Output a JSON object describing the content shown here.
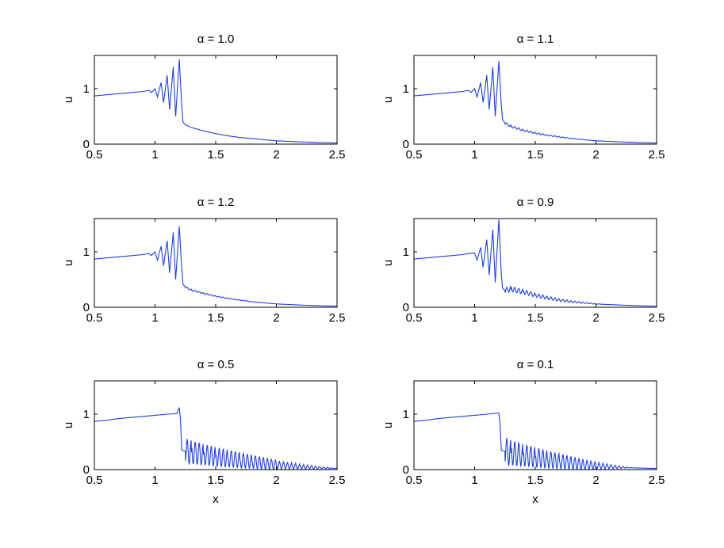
{
  "chart_data": [
    {
      "type": "line",
      "title": "α = 1.0",
      "xlabel": "",
      "ylabel": "u",
      "xlim": [
        0.5,
        2.5
      ],
      "ylim": [
        0,
        1.6
      ],
      "xticks": [
        "0.5",
        "1",
        "1.5",
        "2",
        "2.5"
      ],
      "yticks": [
        "0",
        "1"
      ],
      "grid": false,
      "series": [
        {
          "color": "#1f3fe0",
          "x": [
            0.5,
            0.6,
            0.7,
            0.8,
            0.9,
            0.95,
            0.97,
            1.0,
            1.02,
            1.05,
            1.07,
            1.1,
            1.12,
            1.15,
            1.17,
            1.2,
            1.22,
            1.23,
            1.25,
            1.3,
            1.4,
            1.5,
            1.6,
            1.7,
            1.8,
            1.9,
            2.0,
            2.2,
            2.4,
            2.5
          ],
          "y": [
            0.87,
            0.89,
            0.91,
            0.93,
            0.95,
            0.97,
            0.93,
            1.0,
            0.85,
            1.11,
            0.75,
            1.24,
            0.62,
            1.39,
            0.5,
            1.53,
            0.7,
            0.4,
            0.35,
            0.3,
            0.24,
            0.19,
            0.15,
            0.12,
            0.1,
            0.08,
            0.06,
            0.04,
            0.025,
            0.02
          ]
        }
      ]
    },
    {
      "type": "line",
      "title": "α = 1.1",
      "xlabel": "",
      "ylabel": "u",
      "xlim": [
        0.5,
        2.5
      ],
      "ylim": [
        0,
        1.6
      ],
      "xticks": [
        "0.5",
        "1",
        "1.5",
        "2",
        "2.5"
      ],
      "yticks": [
        "0",
        "1"
      ],
      "grid": false,
      "series": [
        {
          "color": "#1f3fe0",
          "x": [
            0.5,
            0.6,
            0.7,
            0.8,
            0.9,
            0.95,
            0.97,
            1.0,
            1.02,
            1.05,
            1.07,
            1.1,
            1.12,
            1.15,
            1.17,
            1.2,
            1.22,
            1.23,
            1.25,
            1.3,
            1.4,
            1.5,
            1.6,
            1.7,
            1.8,
            1.9,
            2.0,
            2.2,
            2.4,
            2.5
          ],
          "y": [
            0.87,
            0.89,
            0.91,
            0.93,
            0.95,
            0.97,
            0.93,
            1.0,
            0.85,
            1.11,
            0.75,
            1.24,
            0.62,
            1.39,
            0.5,
            1.5,
            0.7,
            0.45,
            0.38,
            0.32,
            0.25,
            0.2,
            0.16,
            0.13,
            0.1,
            0.08,
            0.06,
            0.04,
            0.025,
            0.02
          ]
        }
      ]
    },
    {
      "type": "line",
      "title": "α = 1.2",
      "xlabel": "",
      "ylabel": "u",
      "xlim": [
        0.5,
        2.5
      ],
      "ylim": [
        0,
        1.6
      ],
      "xticks": [
        "0.5",
        "1",
        "1.5",
        "2",
        "2.5"
      ],
      "yticks": [
        "0",
        "1"
      ],
      "grid": false,
      "series": [
        {
          "color": "#1f3fe0",
          "x": [
            0.5,
            0.6,
            0.7,
            0.8,
            0.9,
            0.95,
            0.97,
            1.0,
            1.02,
            1.05,
            1.07,
            1.1,
            1.12,
            1.15,
            1.17,
            1.2,
            1.22,
            1.23,
            1.25,
            1.3,
            1.4,
            1.5,
            1.6,
            1.7,
            1.8,
            1.9,
            2.0,
            2.2,
            2.4,
            2.5
          ],
          "y": [
            0.87,
            0.89,
            0.91,
            0.93,
            0.95,
            0.97,
            0.93,
            1.0,
            0.85,
            1.1,
            0.75,
            1.2,
            0.62,
            1.35,
            0.5,
            1.46,
            0.7,
            0.42,
            0.36,
            0.31,
            0.25,
            0.2,
            0.16,
            0.13,
            0.1,
            0.08,
            0.06,
            0.04,
            0.025,
            0.02
          ]
        }
      ]
    },
    {
      "type": "line",
      "title": "α = 0.9",
      "xlabel": "",
      "ylabel": "u",
      "xlim": [
        0.5,
        2.5
      ],
      "ylim": [
        0,
        1.6
      ],
      "xticks": [
        "0.5",
        "1",
        "1.5",
        "2",
        "2.5"
      ],
      "yticks": [
        "0",
        "1"
      ],
      "grid": false,
      "series": [
        {
          "color": "#1f3fe0",
          "x": [
            0.5,
            0.6,
            0.7,
            0.8,
            0.9,
            0.95,
            1.0,
            1.02,
            1.05,
            1.07,
            1.1,
            1.12,
            1.15,
            1.17,
            1.2,
            1.22,
            1.23,
            1.25,
            1.3,
            1.4,
            1.5,
            1.6,
            1.7,
            1.8,
            1.9,
            2.0,
            2.2,
            2.4,
            2.5
          ],
          "y": [
            0.87,
            0.89,
            0.91,
            0.93,
            0.95,
            0.97,
            0.98,
            0.85,
            1.08,
            0.72,
            1.22,
            0.58,
            1.4,
            0.45,
            1.58,
            0.6,
            0.35,
            0.3,
            0.33,
            0.28,
            0.22,
            0.17,
            0.13,
            0.1,
            0.08,
            0.06,
            0.04,
            0.025,
            0.02
          ]
        }
      ]
    },
    {
      "type": "line",
      "title": "α = 0.5",
      "xlabel": "x",
      "ylabel": "u",
      "xlim": [
        0.5,
        2.5
      ],
      "ylim": [
        0,
        1.6
      ],
      "xticks": [
        "0.5",
        "1",
        "1.5",
        "2",
        "2.5"
      ],
      "yticks": [
        "0",
        "1"
      ],
      "grid": false,
      "series": [
        {
          "color": "#1f3fe0",
          "x": [
            0.5,
            0.6,
            0.7,
            0.8,
            0.9,
            1.0,
            1.1,
            1.18,
            1.2,
            1.21,
            1.22,
            1.25,
            1.3,
            1.4,
            1.5,
            1.6,
            1.7,
            1.8,
            1.9,
            2.0,
            2.2,
            2.4,
            2.5
          ],
          "y": [
            0.87,
            0.89,
            0.92,
            0.94,
            0.96,
            0.98,
            1.0,
            1.01,
            1.12,
            0.9,
            0.35,
            0.33,
            0.31,
            0.27,
            0.23,
            0.2,
            0.17,
            0.14,
            0.11,
            0.08,
            0.05,
            0.03,
            0.02
          ]
        }
      ]
    },
    {
      "type": "line",
      "title": "α = 0.1",
      "xlabel": "x",
      "ylabel": "u",
      "xlim": [
        0.5,
        2.5
      ],
      "ylim": [
        0,
        1.6
      ],
      "xticks": [
        "0.5",
        "1",
        "1.5",
        "2",
        "2.5"
      ],
      "yticks": [
        "0",
        "1"
      ],
      "grid": false,
      "series": [
        {
          "color": "#1f3fe0",
          "x": [
            0.5,
            0.6,
            0.7,
            0.8,
            0.9,
            1.0,
            1.1,
            1.2,
            1.21,
            1.22,
            1.25,
            1.3,
            1.4,
            1.5,
            1.6,
            1.7,
            1.8,
            1.9,
            2.0,
            2.2,
            2.4,
            2.5
          ],
          "y": [
            0.87,
            0.89,
            0.92,
            0.94,
            0.96,
            0.98,
            1.0,
            1.02,
            0.8,
            0.35,
            0.33,
            0.3,
            0.26,
            0.22,
            0.18,
            0.15,
            0.12,
            0.09,
            0.07,
            0.04,
            0.025,
            0.02
          ]
        }
      ]
    }
  ]
}
